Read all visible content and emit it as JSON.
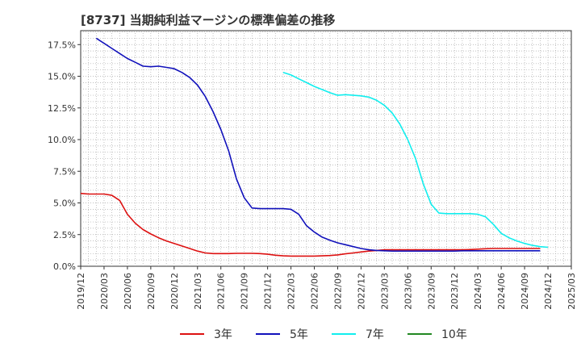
{
  "chart_data": {
    "type": "line",
    "title": "[8737]  当期純利益マージンの標準偏差の推移",
    "xlabel": "",
    "ylabel": "",
    "x_ticks": [
      "2019/12",
      "2020/03",
      "2020/06",
      "2020/09",
      "2020/12",
      "2021/03",
      "2021/06",
      "2021/09",
      "2021/12",
      "2022/03",
      "2022/06",
      "2022/09",
      "2022/12",
      "2023/03",
      "2023/06",
      "2023/09",
      "2023/12",
      "2024/03",
      "2024/06",
      "2024/09",
      "2024/12",
      "2025/03"
    ],
    "y_ticks": [
      "0.0%",
      "2.5%",
      "5.0%",
      "7.5%",
      "10.0%",
      "12.5%",
      "15.0%",
      "17.5%"
    ],
    "ylim": [
      0,
      18.6
    ],
    "grid": true,
    "legend_position": "bottom",
    "series": [
      {
        "name": "3年",
        "color": "#dd1111",
        "start_index": 0,
        "values": [
          5.75,
          5.7,
          5.7,
          5.7,
          5.6,
          5.2,
          4.1,
          3.4,
          2.9,
          2.55,
          2.25,
          2.0,
          1.8,
          1.6,
          1.4,
          1.2,
          1.05,
          1.0,
          1.0,
          1.0,
          1.02,
          1.02,
          1.02,
          1.0,
          0.95,
          0.87,
          0.82,
          0.8,
          0.8,
          0.8,
          0.8,
          0.82,
          0.85,
          0.9,
          0.98,
          1.05,
          1.13,
          1.2,
          1.25,
          1.3,
          1.3,
          1.3,
          1.3,
          1.3,
          1.3,
          1.3,
          1.3,
          1.3,
          1.3,
          1.3,
          1.32,
          1.35,
          1.38,
          1.4,
          1.4,
          1.4,
          1.4,
          1.4,
          1.4,
          1.4
        ]
      },
      {
        "name": "5年",
        "color": "#1111bb",
        "start_index": 2,
        "values": [
          18.0,
          17.6,
          17.2,
          16.8,
          16.4,
          16.1,
          15.8,
          15.75,
          15.8,
          15.7,
          15.6,
          15.3,
          14.9,
          14.3,
          13.4,
          12.2,
          10.8,
          9.1,
          6.9,
          5.4,
          4.6,
          4.55,
          4.55,
          4.55,
          4.55,
          4.5,
          4.1,
          3.2,
          2.7,
          2.3,
          2.05,
          1.85,
          1.7,
          1.55,
          1.4,
          1.3,
          1.25,
          1.22,
          1.2,
          1.2,
          1.2,
          1.2,
          1.2,
          1.2,
          1.2,
          1.2,
          1.2,
          1.22,
          1.22,
          1.22,
          1.22,
          1.22,
          1.22,
          1.22,
          1.22,
          1.22,
          1.22,
          1.22
        ]
      },
      {
        "name": "7年",
        "color": "#11eeee",
        "start_index": 26,
        "values": [
          15.3,
          15.1,
          14.8,
          14.5,
          14.2,
          13.95,
          13.7,
          13.5,
          13.55,
          13.5,
          13.45,
          13.35,
          13.1,
          12.7,
          12.1,
          11.2,
          10.0,
          8.5,
          6.5,
          4.9,
          4.2,
          4.15,
          4.15,
          4.15,
          4.15,
          4.1,
          3.9,
          3.3,
          2.6,
          2.25,
          2.0,
          1.8,
          1.65,
          1.55,
          1.5
        ]
      },
      {
        "name": "10年",
        "color": "#228822",
        "start_index": 0,
        "values": []
      }
    ]
  }
}
